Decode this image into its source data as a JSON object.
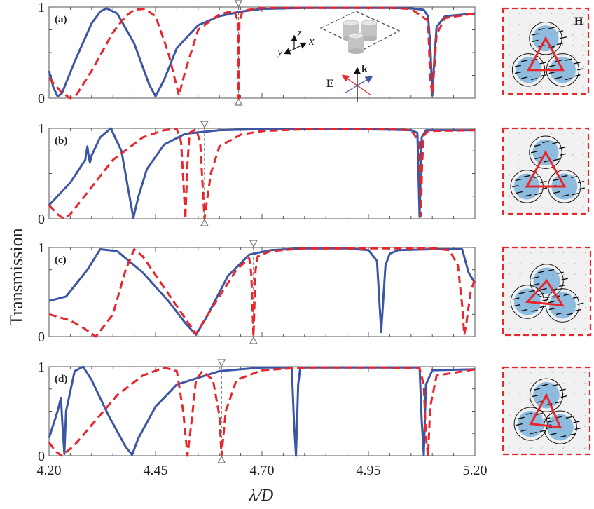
{
  "figure": {
    "ylabel": "Transmission",
    "xlabel": "λ/D",
    "xticks": [
      "4.20",
      "4.45",
      "4.70",
      "4.95",
      "5.20"
    ],
    "yticks": [
      "0",
      "1"
    ]
  },
  "inset": {
    "axis_z": "z",
    "axis_y": "y",
    "axis_x": "x",
    "E_label": "E",
    "k_label": "k"
  },
  "field_maps": {
    "H_label": "H"
  },
  "colors": {
    "solid": "#3c55a5",
    "dashed": "#e8262b",
    "axis": "#555555",
    "marker": "#777777",
    "field_blue": "#3d8fd0"
  },
  "chart_data": [
    {
      "type": "line",
      "panel_label": "(a)",
      "xlim": [
        4.2,
        5.2
      ],
      "ylim": [
        0,
        1
      ],
      "marker_x": 4.645,
      "series": [
        {
          "style": "solid",
          "x": [
            4.2,
            4.21,
            4.22,
            4.23,
            4.26,
            4.3,
            4.32,
            4.335,
            4.36,
            4.4,
            4.435,
            4.45,
            4.47,
            4.5,
            4.55,
            4.6,
            4.65,
            4.7,
            4.8,
            4.9,
            5.0,
            5.05,
            5.08,
            5.09,
            5.095,
            5.1,
            5.105,
            5.11,
            5.13,
            5.2
          ],
          "y": [
            0.3,
            0.12,
            0.02,
            0.05,
            0.4,
            0.82,
            0.95,
            0.985,
            0.93,
            0.6,
            0.15,
            0.02,
            0.2,
            0.55,
            0.8,
            0.9,
            0.95,
            0.98,
            0.99,
            0.99,
            0.99,
            0.985,
            0.97,
            0.9,
            0.6,
            0.03,
            0.45,
            0.78,
            0.9,
            0.93
          ]
        },
        {
          "style": "dashed",
          "x": [
            4.2,
            4.23,
            4.25,
            4.265,
            4.3,
            4.35,
            4.38,
            4.4,
            4.425,
            4.45,
            4.48,
            4.505,
            4.52,
            4.55,
            4.6,
            4.635,
            4.643,
            4.645,
            4.647,
            4.655,
            4.7,
            4.8,
            4.9,
            5.0,
            5.05,
            5.09,
            5.095,
            5.1,
            5.105,
            5.11,
            5.13,
            5.2
          ],
          "y": [
            0.22,
            0.06,
            0.0,
            0.04,
            0.3,
            0.72,
            0.9,
            0.97,
            0.98,
            0.9,
            0.5,
            0.03,
            0.3,
            0.75,
            0.92,
            0.96,
            0.85,
            0.0,
            0.85,
            0.96,
            0.99,
            0.99,
            0.99,
            0.99,
            0.98,
            0.85,
            0.2,
            0.05,
            0.35,
            0.7,
            0.88,
            0.93
          ]
        }
      ]
    },
    {
      "type": "line",
      "panel_label": "(b)",
      "xlim": [
        4.2,
        5.2
      ],
      "ylim": [
        0,
        1
      ],
      "marker_x": 4.565,
      "series": [
        {
          "style": "solid",
          "x": [
            4.2,
            4.25,
            4.285,
            4.29,
            4.293,
            4.296,
            4.3,
            4.32,
            4.345,
            4.37,
            4.385,
            4.398,
            4.41,
            4.43,
            4.47,
            4.52,
            4.6,
            4.7,
            4.8,
            4.9,
            5.0,
            5.05,
            5.065,
            5.07,
            5.075,
            5.085,
            5.2
          ],
          "y": [
            0.15,
            0.4,
            0.65,
            0.8,
            0.7,
            0.62,
            0.7,
            0.9,
            1.0,
            0.75,
            0.35,
            0.01,
            0.25,
            0.55,
            0.82,
            0.94,
            0.98,
            0.99,
            0.99,
            0.99,
            0.985,
            0.98,
            0.95,
            0.02,
            0.9,
            0.98,
            0.98
          ]
        },
        {
          "style": "dashed",
          "x": [
            4.2,
            4.22,
            4.235,
            4.25,
            4.3,
            4.35,
            4.42,
            4.47,
            4.5,
            4.51,
            4.515,
            4.52,
            4.525,
            4.53,
            4.545,
            4.555,
            4.565,
            4.58,
            4.6,
            4.65,
            4.7,
            4.8,
            4.9,
            5.0,
            5.05,
            5.07,
            5.073,
            5.076,
            5.08,
            5.09,
            5.2
          ],
          "y": [
            0.15,
            0.05,
            0.0,
            0.05,
            0.35,
            0.65,
            0.9,
            0.98,
            0.99,
            0.85,
            0.45,
            0.0,
            0.6,
            0.95,
            0.99,
            0.85,
            0.0,
            0.5,
            0.8,
            0.93,
            0.97,
            0.99,
            0.99,
            0.99,
            0.98,
            0.85,
            0.03,
            0.6,
            0.92,
            0.97,
            0.98
          ]
        }
      ]
    },
    {
      "type": "line",
      "panel_label": "(c)",
      "xlim": [
        4.2,
        5.2
      ],
      "ylim": [
        0,
        1
      ],
      "marker_x": 4.68,
      "series": [
        {
          "style": "solid",
          "x": [
            4.2,
            4.24,
            4.29,
            4.32,
            4.36,
            4.42,
            4.48,
            4.52,
            4.545,
            4.57,
            4.62,
            4.67,
            4.72,
            4.8,
            4.9,
            4.95,
            4.97,
            4.98,
            4.99,
            5.0,
            5.02,
            5.1,
            5.17,
            5.185,
            5.2
          ],
          "y": [
            0.4,
            0.45,
            0.75,
            0.98,
            0.96,
            0.72,
            0.4,
            0.15,
            0.02,
            0.22,
            0.68,
            0.92,
            0.97,
            0.99,
            0.99,
            0.97,
            0.85,
            0.05,
            0.8,
            0.93,
            0.97,
            0.98,
            0.98,
            0.72,
            0.6
          ]
        },
        {
          "style": "dashed",
          "x": [
            4.2,
            4.25,
            4.28,
            4.31,
            4.35,
            4.38,
            4.4,
            4.42,
            4.47,
            4.52,
            4.545,
            4.58,
            4.64,
            4.67,
            4.675,
            4.68,
            4.685,
            4.69,
            4.72,
            4.8,
            4.9,
            5.0,
            5.1,
            5.14,
            5.16,
            5.17,
            5.175,
            5.18,
            5.19,
            5.2
          ],
          "y": [
            0.25,
            0.18,
            0.1,
            0.0,
            0.25,
            0.75,
            0.98,
            0.9,
            0.55,
            0.2,
            0.03,
            0.3,
            0.75,
            0.88,
            0.7,
            0.0,
            0.75,
            0.9,
            0.96,
            0.99,
            0.99,
            0.99,
            0.99,
            0.97,
            0.8,
            0.35,
            0.02,
            0.15,
            0.5,
            0.65
          ]
        }
      ]
    },
    {
      "type": "line",
      "panel_label": "(d)",
      "xlim": [
        4.2,
        5.2
      ],
      "ylim": [
        0,
        1
      ],
      "marker_x": 4.605,
      "series": [
        {
          "style": "solid",
          "x": [
            4.2,
            4.22,
            4.228,
            4.232,
            4.236,
            4.24,
            4.26,
            4.28,
            4.3,
            4.34,
            4.38,
            4.395,
            4.41,
            4.45,
            4.5,
            4.6,
            4.7,
            4.77,
            4.775,
            4.78,
            4.785,
            4.79,
            4.9,
            5.0,
            5.07,
            5.075,
            5.08,
            5.085,
            5.1,
            5.2
          ],
          "y": [
            0.2,
            0.5,
            0.65,
            0.3,
            0.02,
            0.5,
            0.95,
            1.0,
            0.85,
            0.45,
            0.1,
            0.01,
            0.2,
            0.55,
            0.8,
            0.95,
            0.99,
            0.99,
            0.4,
            0.0,
            0.8,
            0.99,
            0.99,
            0.99,
            0.99,
            0.4,
            0.01,
            0.8,
            0.96,
            0.97
          ]
        },
        {
          "style": "dashed",
          "x": [
            4.2,
            4.215,
            4.23,
            4.26,
            4.31,
            4.36,
            4.42,
            4.47,
            4.5,
            4.515,
            4.525,
            4.535,
            4.545,
            4.56,
            4.585,
            4.6,
            4.605,
            4.615,
            4.64,
            4.7,
            4.8,
            4.9,
            5.0,
            5.07,
            5.08,
            5.085,
            5.09,
            5.095,
            5.11,
            5.2
          ],
          "y": [
            0.15,
            0.05,
            0.0,
            0.12,
            0.4,
            0.68,
            0.9,
            0.99,
            0.95,
            0.5,
            0.0,
            0.4,
            0.85,
            0.95,
            0.85,
            0.45,
            0.0,
            0.5,
            0.85,
            0.96,
            0.99,
            0.99,
            0.99,
            0.98,
            0.8,
            0.2,
            0.0,
            0.55,
            0.9,
            0.97
          ]
        }
      ]
    }
  ]
}
